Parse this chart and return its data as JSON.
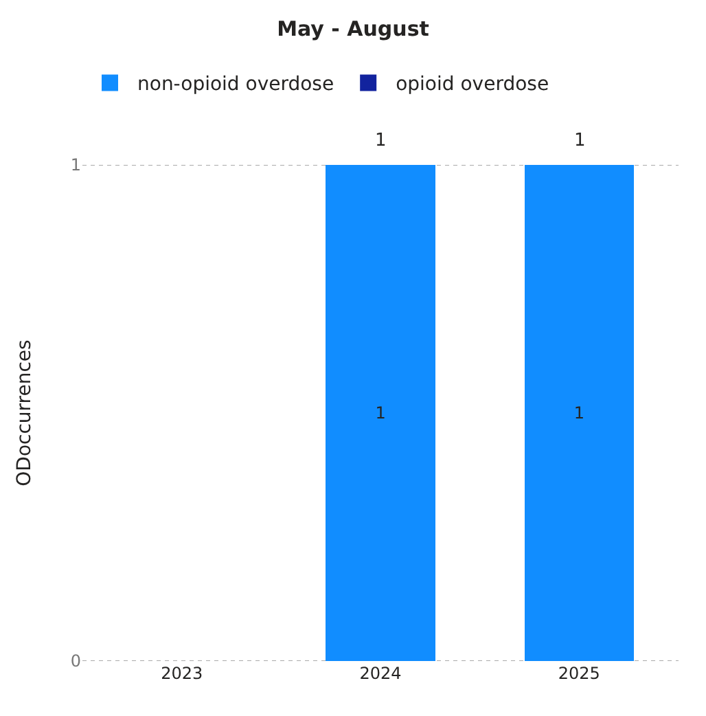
{
  "chart_data": {
    "type": "bar",
    "title": "May - August",
    "ylabel": "ODoccurrences",
    "categories": [
      "2023",
      "2024",
      "2025"
    ],
    "series": [
      {
        "name": "non-opioid overdose",
        "color": "#118dff",
        "values": [
          null,
          1,
          1
        ]
      },
      {
        "name": "opioid overdose",
        "color": "#12239e",
        "values": [
          null,
          null,
          null
        ]
      }
    ],
    "stacked": true,
    "data_labels": true,
    "totals": [
      null,
      "1",
      "1"
    ],
    "ylim": [
      0,
      1
    ],
    "yticks": [
      0,
      1
    ],
    "grid": "y",
    "legend": "top left"
  }
}
